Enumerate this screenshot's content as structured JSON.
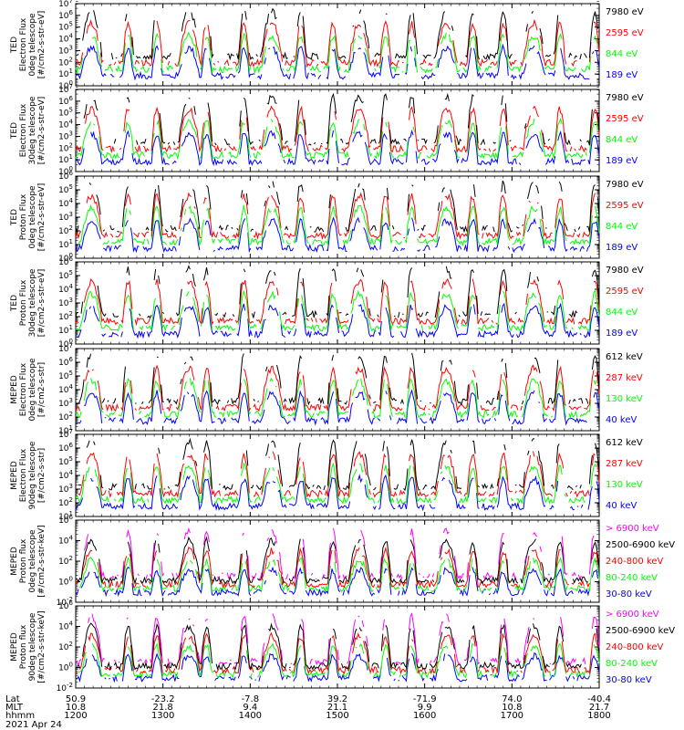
{
  "chart_data": {
    "type": "line",
    "date": "2021 Apr 24",
    "x_axis": {
      "row_labels": [
        "Lat",
        "MLT",
        "hhmm"
      ],
      "ticks": [
        {
          "lat": "50.9",
          "mlt": "10.8",
          "hhmm": "1200"
        },
        {
          "lat": "-23.2",
          "mlt": "21.8",
          "hhmm": "1300"
        },
        {
          "lat": "-7.8",
          "mlt": "9.4",
          "hhmm": "1400"
        },
        {
          "lat": "39.2",
          "mlt": "21.1",
          "hhmm": "1500"
        },
        {
          "lat": "-71.9",
          "mlt": "9.9",
          "hhmm": "1600"
        },
        {
          "lat": "74.0",
          "mlt": "10.8",
          "hhmm": "1700"
        },
        {
          "lat": "-40.4",
          "mlt": "21.7",
          "hhmm": "1800"
        }
      ],
      "range_hhmm": [
        "1200",
        "1800"
      ]
    },
    "panels": [
      {
        "ylabel": [
          "TED",
          "Electron Flux",
          "0deg telescope",
          "[#/cm2-s-str-eV]"
        ],
        "y_exponents": [
          0,
          1,
          2,
          3,
          4,
          5,
          6,
          7
        ],
        "legend": [
          {
            "name": "7980 eV",
            "color": "#000000"
          },
          {
            "name": "2595 eV",
            "color": "#ff0000"
          },
          {
            "name": "844 eV",
            "color": "#00ff00"
          },
          {
            "name": "189 eV",
            "color": "#0000ff"
          }
        ]
      },
      {
        "ylabel": [
          "TED",
          "Electron Flux",
          "30deg telescope",
          "[#/cm2-s-str-eV]"
        ],
        "y_exponents": [
          0,
          1,
          2,
          3,
          4,
          5,
          6,
          7
        ],
        "legend": [
          {
            "name": "7980 eV",
            "color": "#000000"
          },
          {
            "name": "2595 eV",
            "color": "#ff0000"
          },
          {
            "name": "844 eV",
            "color": "#00ff00"
          },
          {
            "name": "189 eV",
            "color": "#0000ff"
          }
        ]
      },
      {
        "ylabel": [
          "TED",
          "Proton Flux",
          "0deg telescope",
          "[#/cm2-s-str-eV]"
        ],
        "y_exponents": [
          0,
          1,
          2,
          3,
          4,
          5,
          6
        ],
        "legend": [
          {
            "name": "7980 eV",
            "color": "#000000"
          },
          {
            "name": "2595 eV",
            "color": "#ff0000"
          },
          {
            "name": "844 eV",
            "color": "#00ff00"
          },
          {
            "name": "189 eV",
            "color": "#0000ff"
          }
        ]
      },
      {
        "ylabel": [
          "TED",
          "Proton Flux",
          "30deg telescope",
          "[#/cm2-s-str-eV]"
        ],
        "y_exponents": [
          0,
          1,
          2,
          3,
          4,
          5,
          6
        ],
        "legend": [
          {
            "name": "7980 eV",
            "color": "#000000"
          },
          {
            "name": "2595 eV",
            "color": "#ff0000"
          },
          {
            "name": "844 eV",
            "color": "#00ff00"
          },
          {
            "name": "189 eV",
            "color": "#0000ff"
          }
        ]
      },
      {
        "ylabel": [
          "MEPED",
          "Electron Flux",
          "0deg telescope",
          "[#/cm2-s-str]"
        ],
        "y_exponents": [
          1,
          2,
          3,
          4,
          5,
          6,
          7
        ],
        "legend": [
          {
            "name": "612 keV",
            "color": "#000000"
          },
          {
            "name": "287 keV",
            "color": "#ff0000"
          },
          {
            "name": "130 keV",
            "color": "#00ff00"
          },
          {
            "name": "40 keV",
            "color": "#0000ff"
          }
        ]
      },
      {
        "ylabel": [
          "MEPED",
          "Electron Flux",
          "90deg telescope",
          "[#/cm2-s-str]"
        ],
        "y_exponents": [
          1,
          2,
          3,
          4,
          5,
          6,
          7
        ],
        "legend": [
          {
            "name": "612 keV",
            "color": "#000000"
          },
          {
            "name": "287 keV",
            "color": "#ff0000"
          },
          {
            "name": "130 keV",
            "color": "#00ff00"
          },
          {
            "name": "40 keV",
            "color": "#0000ff"
          }
        ]
      },
      {
        "ylabel": [
          "MEPED",
          "Proton flux",
          "0deg telescope",
          "[#/cm2-s-str-keV]"
        ],
        "y_exponents": [
          -2,
          0,
          2,
          4,
          6
        ],
        "legend": [
          {
            "name": "> 6900 keV",
            "color": "#ff00ff"
          },
          {
            "name": "2500-6900 keV",
            "color": "#000000"
          },
          {
            "name": "240-800 keV",
            "color": "#ff0000"
          },
          {
            "name": "80-240 keV",
            "color": "#00ff00"
          },
          {
            "name": "30-80 keV",
            "color": "#0000ff"
          }
        ]
      },
      {
        "ylabel": [
          "MEPED",
          "Proton flux",
          "90deg telescope",
          "[#/cm2-s-str-keV]"
        ],
        "y_exponents": [
          -2,
          0,
          2,
          4,
          6
        ],
        "legend": [
          {
            "name": "> 6900 keV",
            "color": "#ff00ff"
          },
          {
            "name": "2500-6900 keV",
            "color": "#000000"
          },
          {
            "name": "240-800 keV",
            "color": "#ff0000"
          },
          {
            "name": "80-240 keV",
            "color": "#00ff00"
          },
          {
            "name": "30-80 keV",
            "color": "#0000ff"
          }
        ]
      }
    ]
  }
}
